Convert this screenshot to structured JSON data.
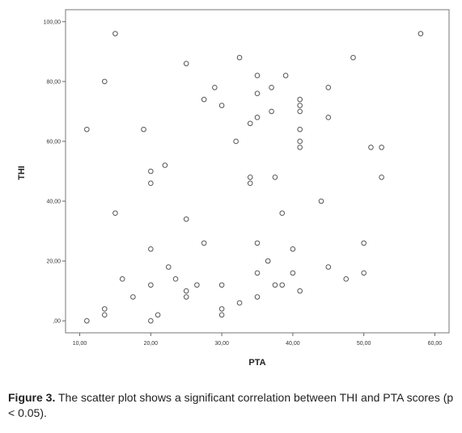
{
  "chart_data": {
    "type": "scatter",
    "xlabel": "PTA",
    "ylabel": "THI",
    "xlim": [
      8,
      62
    ],
    "ylim": [
      -4,
      104
    ],
    "x_ticks": [
      10,
      20,
      30,
      40,
      50,
      60
    ],
    "x_tick_labels": [
      "10,00",
      "20,00",
      "30,00",
      "40,00",
      "50,00",
      "60,00"
    ],
    "y_ticks": [
      0,
      20,
      40,
      60,
      80,
      100
    ],
    "y_tick_labels": [
      ",00",
      "20,00",
      "40,00",
      "60,00",
      "80,00",
      "100,00"
    ],
    "grid": false,
    "marker": "hollow-circle",
    "marker_color": "#555555",
    "points": [
      {
        "x": 15,
        "y": 96
      },
      {
        "x": 58,
        "y": 96
      },
      {
        "x": 32.5,
        "y": 88
      },
      {
        "x": 48.5,
        "y": 88
      },
      {
        "x": 25,
        "y": 86
      },
      {
        "x": 35,
        "y": 82
      },
      {
        "x": 39,
        "y": 82
      },
      {
        "x": 13.5,
        "y": 80
      },
      {
        "x": 29,
        "y": 78
      },
      {
        "x": 37,
        "y": 78
      },
      {
        "x": 45,
        "y": 78
      },
      {
        "x": 35,
        "y": 76
      },
      {
        "x": 27.5,
        "y": 74
      },
      {
        "x": 41,
        "y": 74
      },
      {
        "x": 30,
        "y": 72
      },
      {
        "x": 41,
        "y": 72
      },
      {
        "x": 37,
        "y": 70
      },
      {
        "x": 41,
        "y": 70
      },
      {
        "x": 35,
        "y": 68
      },
      {
        "x": 45,
        "y": 68
      },
      {
        "x": 34,
        "y": 66
      },
      {
        "x": 11,
        "y": 64
      },
      {
        "x": 19,
        "y": 64
      },
      {
        "x": 41,
        "y": 64
      },
      {
        "x": 32,
        "y": 60
      },
      {
        "x": 41,
        "y": 60
      },
      {
        "x": 41,
        "y": 58
      },
      {
        "x": 51,
        "y": 58
      },
      {
        "x": 52.5,
        "y": 58
      },
      {
        "x": 22,
        "y": 52
      },
      {
        "x": 20,
        "y": 50
      },
      {
        "x": 34,
        "y": 48
      },
      {
        "x": 37.5,
        "y": 48
      },
      {
        "x": 52.5,
        "y": 48
      },
      {
        "x": 20,
        "y": 46
      },
      {
        "x": 34,
        "y": 46
      },
      {
        "x": 44,
        "y": 40
      },
      {
        "x": 15,
        "y": 36
      },
      {
        "x": 38.5,
        "y": 36
      },
      {
        "x": 25,
        "y": 34
      },
      {
        "x": 27.5,
        "y": 26
      },
      {
        "x": 35,
        "y": 26
      },
      {
        "x": 50,
        "y": 26
      },
      {
        "x": 20,
        "y": 24
      },
      {
        "x": 40,
        "y": 24
      },
      {
        "x": 36.5,
        "y": 20
      },
      {
        "x": 22.5,
        "y": 18
      },
      {
        "x": 45,
        "y": 18
      },
      {
        "x": 35,
        "y": 16
      },
      {
        "x": 40,
        "y": 16
      },
      {
        "x": 50,
        "y": 16
      },
      {
        "x": 16,
        "y": 14
      },
      {
        "x": 23.5,
        "y": 14
      },
      {
        "x": 47.5,
        "y": 14
      },
      {
        "x": 20,
        "y": 12
      },
      {
        "x": 26.5,
        "y": 12
      },
      {
        "x": 30,
        "y": 12
      },
      {
        "x": 37.5,
        "y": 12
      },
      {
        "x": 38.5,
        "y": 12
      },
      {
        "x": 25,
        "y": 10
      },
      {
        "x": 41,
        "y": 10
      },
      {
        "x": 17.5,
        "y": 8
      },
      {
        "x": 25,
        "y": 8
      },
      {
        "x": 35,
        "y": 8
      },
      {
        "x": 32.5,
        "y": 6
      },
      {
        "x": 13.5,
        "y": 4
      },
      {
        "x": 30,
        "y": 4
      },
      {
        "x": 13.5,
        "y": 2
      },
      {
        "x": 21,
        "y": 2
      },
      {
        "x": 30,
        "y": 2
      },
      {
        "x": 11,
        "y": 0
      },
      {
        "x": 20,
        "y": 0
      }
    ]
  },
  "caption": {
    "label": "Figure 3.",
    "text": " The scatter plot shows a significant correlation between THI and PTA scores (p < 0.05)."
  }
}
